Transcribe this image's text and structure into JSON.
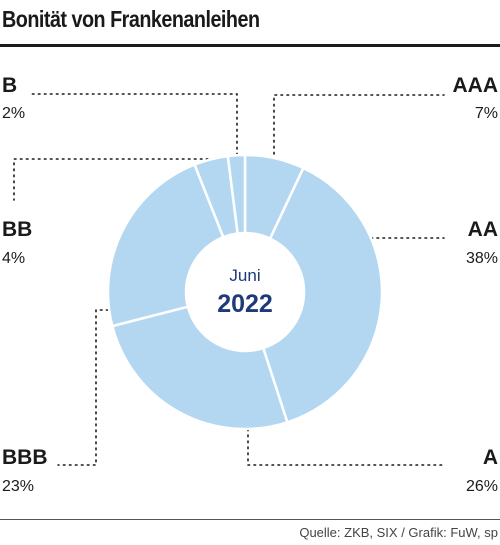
{
  "header": {
    "title": "Bonität von Frankenanleihen"
  },
  "footer": {
    "source": "Quelle: ZKB, SIX / Grafik: FuW, sp"
  },
  "colors": {
    "slice": "#b3d7f1",
    "slice_stroke": "#ffffff",
    "center_text": "#1f3a7a",
    "leader": "#1a1a1a"
  },
  "chart_data": {
    "type": "pie",
    "variant": "donut",
    "center_label": {
      "month": "Juni",
      "year": "2022"
    },
    "categories": [
      "AAA",
      "AA",
      "A",
      "BBB",
      "BB",
      "B"
    ],
    "values": [
      7,
      38,
      26,
      23,
      4,
      2
    ],
    "value_labels": [
      "7%",
      "38%",
      "26%",
      "23%",
      "4%",
      "2%"
    ],
    "start": "12 o'clock, clockwise"
  }
}
